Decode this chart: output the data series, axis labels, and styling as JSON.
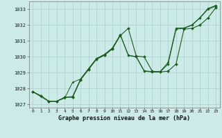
{
  "title": "Graphe pression niveau de la mer (hPa)",
  "bg_color": "#cceae8",
  "line_color": "#1a5c1a",
  "grid_color": "#aacece",
  "xlim": [
    -0.5,
    23.5
  ],
  "ylim": [
    1026.8,
    1033.5
  ],
  "yticks": [
    1027,
    1028,
    1029,
    1030,
    1031,
    1032,
    1033
  ],
  "xticks": [
    0,
    1,
    2,
    3,
    4,
    5,
    6,
    7,
    8,
    9,
    10,
    11,
    12,
    13,
    14,
    15,
    16,
    17,
    18,
    19,
    20,
    21,
    22,
    23
  ],
  "series1_x": [
    0,
    1,
    2,
    3,
    4,
    5,
    6,
    7,
    8,
    9,
    10,
    11,
    12,
    13,
    14,
    15,
    16,
    17,
    18,
    19,
    20,
    21,
    22,
    23
  ],
  "series1_y": [
    1027.8,
    1027.55,
    1027.2,
    1027.2,
    1027.45,
    1027.45,
    1028.55,
    1029.2,
    1029.85,
    1030.1,
    1030.5,
    1031.35,
    1031.8,
    1030.05,
    1030.0,
    1029.1,
    1029.05,
    1029.1,
    1029.55,
    1031.75,
    1031.8,
    1032.0,
    1032.45,
    1033.1
  ],
  "series2_x": [
    0,
    1,
    2,
    3,
    4,
    5,
    6,
    7,
    8,
    9,
    10,
    11,
    12,
    13,
    14,
    15,
    16,
    17,
    18,
    19,
    20,
    21,
    22,
    23
  ],
  "series2_y": [
    1027.8,
    1027.55,
    1027.2,
    1027.2,
    1027.45,
    1027.5,
    1028.6,
    1029.25,
    1029.9,
    1030.15,
    1030.55,
    1031.38,
    1030.1,
    1030.0,
    1029.1,
    1029.05,
    1029.05,
    1029.55,
    1031.75,
    1031.8,
    1032.0,
    1032.45,
    1033.0,
    1033.2
  ],
  "series3_x": [
    0,
    2,
    3,
    4,
    5,
    6,
    7,
    8,
    9,
    10,
    11,
    12,
    13,
    14,
    15,
    16,
    17,
    18,
    19,
    20,
    21,
    22,
    23
  ],
  "series3_y": [
    1027.8,
    1027.2,
    1027.2,
    1027.4,
    1028.4,
    1028.6,
    1029.25,
    1029.88,
    1030.15,
    1030.55,
    1031.4,
    1030.1,
    1030.02,
    1029.12,
    1029.08,
    1029.08,
    1029.65,
    1031.82,
    1031.82,
    1032.02,
    1032.47,
    1033.05,
    1033.25
  ]
}
